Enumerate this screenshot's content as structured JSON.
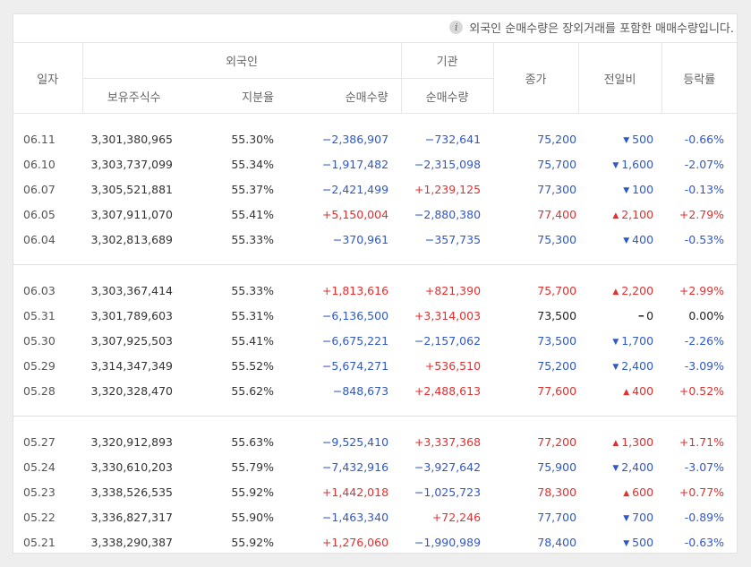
{
  "notice": "외국인 순매수량은 장외거래를 포함한 매매수량입니다.",
  "headers": {
    "date": "일자",
    "foreign": "외국인",
    "institution": "기관",
    "close": "종가",
    "change": "전일비",
    "rate": "등락률",
    "holdings": "보유주식수",
    "ratio": "지분율",
    "foreign_net": "순매수량",
    "inst_net": "순매수량"
  },
  "colors": {
    "up": "#e52e2e",
    "down": "#2f58c8",
    "flat": "#222222"
  },
  "groups": [
    [
      {
        "date": "06.11",
        "holdings": "3,301,380,965",
        "ratio": "55.30%",
        "foreign_net": "−2,386,907",
        "foreign_dir": "down",
        "inst_net": "−732,641",
        "inst_dir": "down",
        "close": "75,200",
        "close_dir": "down",
        "change": "500",
        "change_dir": "down",
        "rate": "-0.66%",
        "rate_dir": "down"
      },
      {
        "date": "06.10",
        "holdings": "3,303,737,099",
        "ratio": "55.34%",
        "foreign_net": "−1,917,482",
        "foreign_dir": "down",
        "inst_net": "−2,315,098",
        "inst_dir": "down",
        "close": "75,700",
        "close_dir": "down",
        "change": "1,600",
        "change_dir": "down",
        "rate": "-2.07%",
        "rate_dir": "down"
      },
      {
        "date": "06.07",
        "holdings": "3,305,521,881",
        "ratio": "55.37%",
        "foreign_net": "−2,421,499",
        "foreign_dir": "down",
        "inst_net": "+1,239,125",
        "inst_dir": "up",
        "close": "77,300",
        "close_dir": "down",
        "change": "100",
        "change_dir": "down",
        "rate": "-0.13%",
        "rate_dir": "down"
      },
      {
        "date": "06.05",
        "holdings": "3,307,911,070",
        "ratio": "55.41%",
        "foreign_net": "+5,150,004",
        "foreign_dir": "up",
        "inst_net": "−2,880,380",
        "inst_dir": "down",
        "close": "77,400",
        "close_dir": "up",
        "change": "2,100",
        "change_dir": "up",
        "rate": "+2.79%",
        "rate_dir": "up"
      },
      {
        "date": "06.04",
        "holdings": "3,302,813,689",
        "ratio": "55.33%",
        "foreign_net": "−370,961",
        "foreign_dir": "down",
        "inst_net": "−357,735",
        "inst_dir": "down",
        "close": "75,300",
        "close_dir": "down",
        "change": "400",
        "change_dir": "down",
        "rate": "-0.53%",
        "rate_dir": "down"
      }
    ],
    [
      {
        "date": "06.03",
        "holdings": "3,303,367,414",
        "ratio": "55.33%",
        "foreign_net": "+1,813,616",
        "foreign_dir": "up",
        "inst_net": "+821,390",
        "inst_dir": "up",
        "close": "75,700",
        "close_dir": "up",
        "change": "2,200",
        "change_dir": "up",
        "rate": "+2.99%",
        "rate_dir": "up"
      },
      {
        "date": "05.31",
        "holdings": "3,301,789,603",
        "ratio": "55.31%",
        "foreign_net": "−6,136,500",
        "foreign_dir": "down",
        "inst_net": "+3,314,003",
        "inst_dir": "up",
        "close": "73,500",
        "close_dir": "flat",
        "change": "0",
        "change_dir": "flat",
        "rate": "0.00%",
        "rate_dir": "flat"
      },
      {
        "date": "05.30",
        "holdings": "3,307,925,503",
        "ratio": "55.41%",
        "foreign_net": "−6,675,221",
        "foreign_dir": "down",
        "inst_net": "−2,157,062",
        "inst_dir": "down",
        "close": "73,500",
        "close_dir": "down",
        "change": "1,700",
        "change_dir": "down",
        "rate": "-2.26%",
        "rate_dir": "down"
      },
      {
        "date": "05.29",
        "holdings": "3,314,347,349",
        "ratio": "55.52%",
        "foreign_net": "−5,674,271",
        "foreign_dir": "down",
        "inst_net": "+536,510",
        "inst_dir": "up",
        "close": "75,200",
        "close_dir": "down",
        "change": "2,400",
        "change_dir": "down",
        "rate": "-3.09%",
        "rate_dir": "down"
      },
      {
        "date": "05.28",
        "holdings": "3,320,328,470",
        "ratio": "55.62%",
        "foreign_net": "−848,673",
        "foreign_dir": "down",
        "inst_net": "+2,488,613",
        "inst_dir": "up",
        "close": "77,600",
        "close_dir": "up",
        "change": "400",
        "change_dir": "up",
        "rate": "+0.52%",
        "rate_dir": "up"
      }
    ],
    [
      {
        "date": "05.27",
        "holdings": "3,320,912,893",
        "ratio": "55.63%",
        "foreign_net": "−9,525,410",
        "foreign_dir": "down",
        "inst_net": "+3,337,368",
        "inst_dir": "up",
        "close": "77,200",
        "close_dir": "up",
        "change": "1,300",
        "change_dir": "up",
        "rate": "+1.71%",
        "rate_dir": "up"
      },
      {
        "date": "05.24",
        "holdings": "3,330,610,203",
        "ratio": "55.79%",
        "foreign_net": "−7,432,916",
        "foreign_dir": "down",
        "inst_net": "−3,927,642",
        "inst_dir": "down",
        "close": "75,900",
        "close_dir": "down",
        "change": "2,400",
        "change_dir": "down",
        "rate": "-3.07%",
        "rate_dir": "down"
      },
      {
        "date": "05.23",
        "holdings": "3,338,526,535",
        "ratio": "55.92%",
        "foreign_net": "+1,442,018",
        "foreign_dir": "up",
        "inst_net": "−1,025,723",
        "inst_dir": "down",
        "close": "78,300",
        "close_dir": "up",
        "change": "600",
        "change_dir": "up",
        "rate": "+0.77%",
        "rate_dir": "up"
      },
      {
        "date": "05.22",
        "holdings": "3,336,827,317",
        "ratio": "55.90%",
        "foreign_net": "−1,463,340",
        "foreign_dir": "down",
        "inst_net": "+72,246",
        "inst_dir": "up",
        "close": "77,700",
        "close_dir": "down",
        "change": "700",
        "change_dir": "down",
        "rate": "-0.89%",
        "rate_dir": "down"
      },
      {
        "date": "05.21",
        "holdings": "3,338,290,387",
        "ratio": "55.92%",
        "foreign_net": "+1,276,060",
        "foreign_dir": "up",
        "inst_net": "−1,990,989",
        "inst_dir": "down",
        "close": "78,400",
        "close_dir": "down",
        "change": "500",
        "change_dir": "down",
        "rate": "-0.63%",
        "rate_dir": "down"
      }
    ]
  ]
}
